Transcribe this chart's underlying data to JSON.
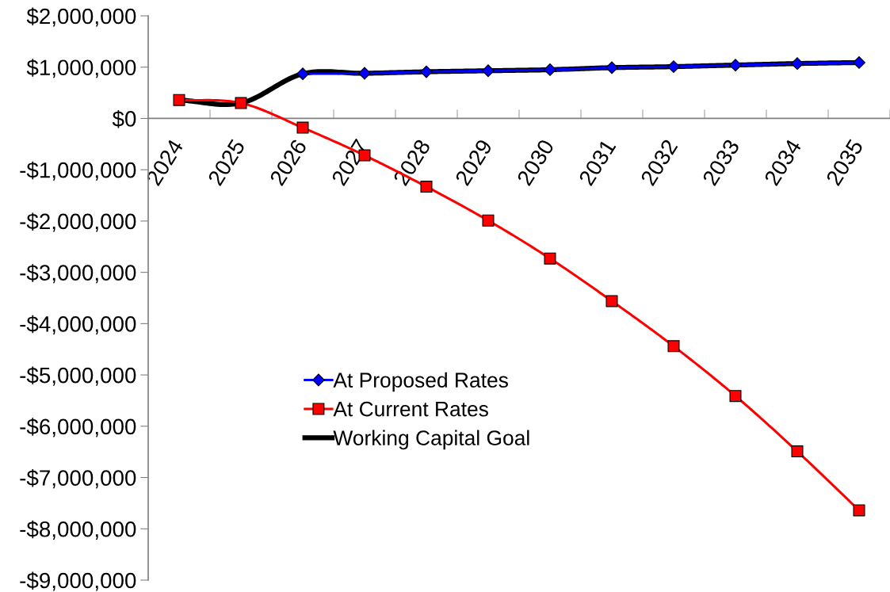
{
  "chart_data": {
    "type": "line",
    "categories": [
      "2024",
      "2025",
      "2026",
      "2027",
      "2028",
      "2029",
      "2030",
      "2031",
      "2032",
      "2033",
      "2034",
      "2035"
    ],
    "series": [
      {
        "name": "At Proposed Rates",
        "color": "#0000ff",
        "marker": "diamond",
        "values": [
          null,
          null,
          870000,
          880000,
          910000,
          930000,
          950000,
          990000,
          1010000,
          1040000,
          1070000,
          1090000
        ]
      },
      {
        "name": "At Current Rates",
        "color": "#ff0000",
        "marker": "square",
        "values": [
          360000,
          300000,
          -180000,
          -720000,
          -1330000,
          -1990000,
          -2730000,
          -3560000,
          -4440000,
          -5410000,
          -6490000,
          -7640000
        ]
      },
      {
        "name": "Working Capital Goal",
        "color": "#000000",
        "marker": "none",
        "values": [
          360000,
          300000,
          870000,
          880000,
          910000,
          930000,
          950000,
          990000,
          1010000,
          1040000,
          1070000,
          1090000
        ]
      }
    ],
    "ylim": [
      -9000000,
      2000000
    ],
    "yticks": [
      {
        "value": -9000000,
        "label": "-$9,000,000"
      },
      {
        "value": -8000000,
        "label": "-$8,000,000"
      },
      {
        "value": -7000000,
        "label": "-$7,000,000"
      },
      {
        "value": -6000000,
        "label": "-$6,000,000"
      },
      {
        "value": -5000000,
        "label": "-$5,000,000"
      },
      {
        "value": -4000000,
        "label": "-$4,000,000"
      },
      {
        "value": -3000000,
        "label": "-$3,000,000"
      },
      {
        "value": -2000000,
        "label": "-$2,000,000"
      },
      {
        "value": -1000000,
        "label": "-$1,000,000"
      },
      {
        "value": 0,
        "label": "$0"
      },
      {
        "value": 1000000,
        "label": "$1,000,000"
      },
      {
        "value": 2000000,
        "label": "$2,000,000"
      }
    ],
    "grid": false,
    "legend": "bottom left",
    "line_style": "solid"
  }
}
